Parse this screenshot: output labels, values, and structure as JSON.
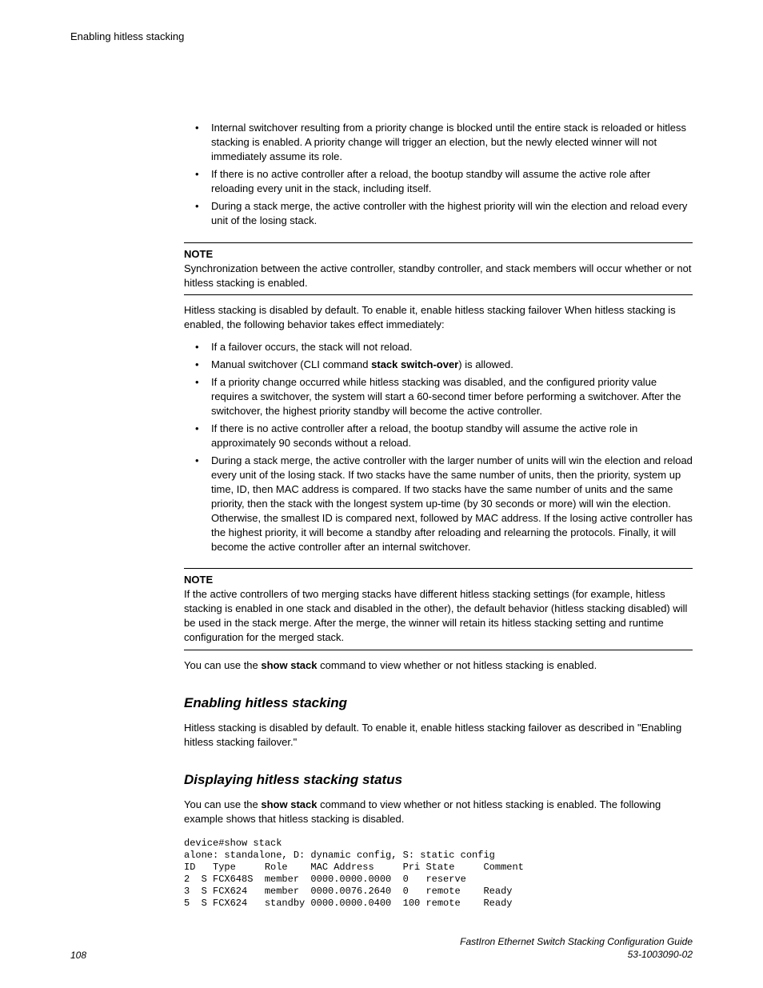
{
  "running_header": "Enabling hitless stacking",
  "list1": [
    "Internal switchover resulting from a priority change is blocked until the entire stack is reloaded or hitless stacking is enabled. A priority change will trigger an election, but the newly elected winner will not immediately assume its role.",
    "If there is no active controller after a reload, the bootup standby will assume the active role after reloading every unit in the stack, including itself.",
    "During a stack merge, the active controller with the highest priority will win the election and reload every unit of the losing stack."
  ],
  "note1": {
    "label": "NOTE",
    "body": "Synchronization between the active controller, standby controller, and stack members will occur whether or not hitless stacking is enabled."
  },
  "para_after_note1": "Hitless stacking is disabled by default. To enable it, enable hitless stacking failover When hitless stacking is enabled, the following behavior takes effect immediately:",
  "list2": {
    "item1": "If a failover occurs, the stack will not reload.",
    "item2_pre": "Manual switchover (CLI command ",
    "item2_bold": "stack switch-over",
    "item2_post": ") is allowed.",
    "item3": "If a priority change occurred while hitless stacking was disabled, and the configured priority value requires a switchover, the system will start a 60-second timer before performing a switchover. After the switchover, the highest priority standby will become the active controller.",
    "item4": "If there is no active controller after a reload, the bootup standby will assume the active role in approximately 90 seconds without a reload.",
    "item5": "During a stack merge, the active controller with the larger number of units will win the election and reload every unit of the losing stack. If two stacks have the same number of units, then the priority, system up time, ID, then MAC address is compared. If two stacks have the same number of units and the same priority, then the stack with the longest system up-time (by 30 seconds or more) will win the election. Otherwise, the smallest ID is compared next, followed by MAC address. If the losing active controller has the highest priority, it will become a standby after reloading and relearning the protocols. Finally, it will become the active controller after an internal switchover."
  },
  "note2": {
    "label": "NOTE",
    "body": "If the active controllers of two merging stacks have different hitless stacking settings (for example, hitless stacking is enabled in one stack and disabled in the other), the default behavior (hitless stacking disabled) will be used in the stack merge. After the merge, the winner will retain its hitless stacking setting and runtime configuration for the merged stack."
  },
  "para_use_show_1_pre": "You can use the ",
  "para_use_show_1_bold": "show stack",
  "para_use_show_1_post": " command to view whether or not hitless stacking is enabled.",
  "section1_title": "Enabling hitless stacking",
  "section1_body": "Hitless stacking is disabled by default. To enable it, enable hitless stacking failover as described in \"Enabling hitless stacking failover.\"",
  "section2_title": "Displaying hitless stacking status",
  "section2_body_pre": "You can use the ",
  "section2_body_bold": "show stack",
  "section2_body_post": " command to view whether or not hitless stacking is enabled. The following example shows that hitless stacking is disabled.",
  "cli_output": "device#show stack\nalone: standalone, D: dynamic config, S: static config\nID   Type     Role    MAC Address     Pri State     Comment\n2  S FCX648S  member  0000.0000.0000  0   reserve\n3  S FCX624   member  0000.0076.2640  0   remote    Ready\n5  S FCX624   standby 0000.0000.0400  100 remote    Ready",
  "footer": {
    "pagenum": "108",
    "title": "FastIron Ethernet Switch Stacking Configuration Guide",
    "docnum": "53-1003090-02"
  }
}
